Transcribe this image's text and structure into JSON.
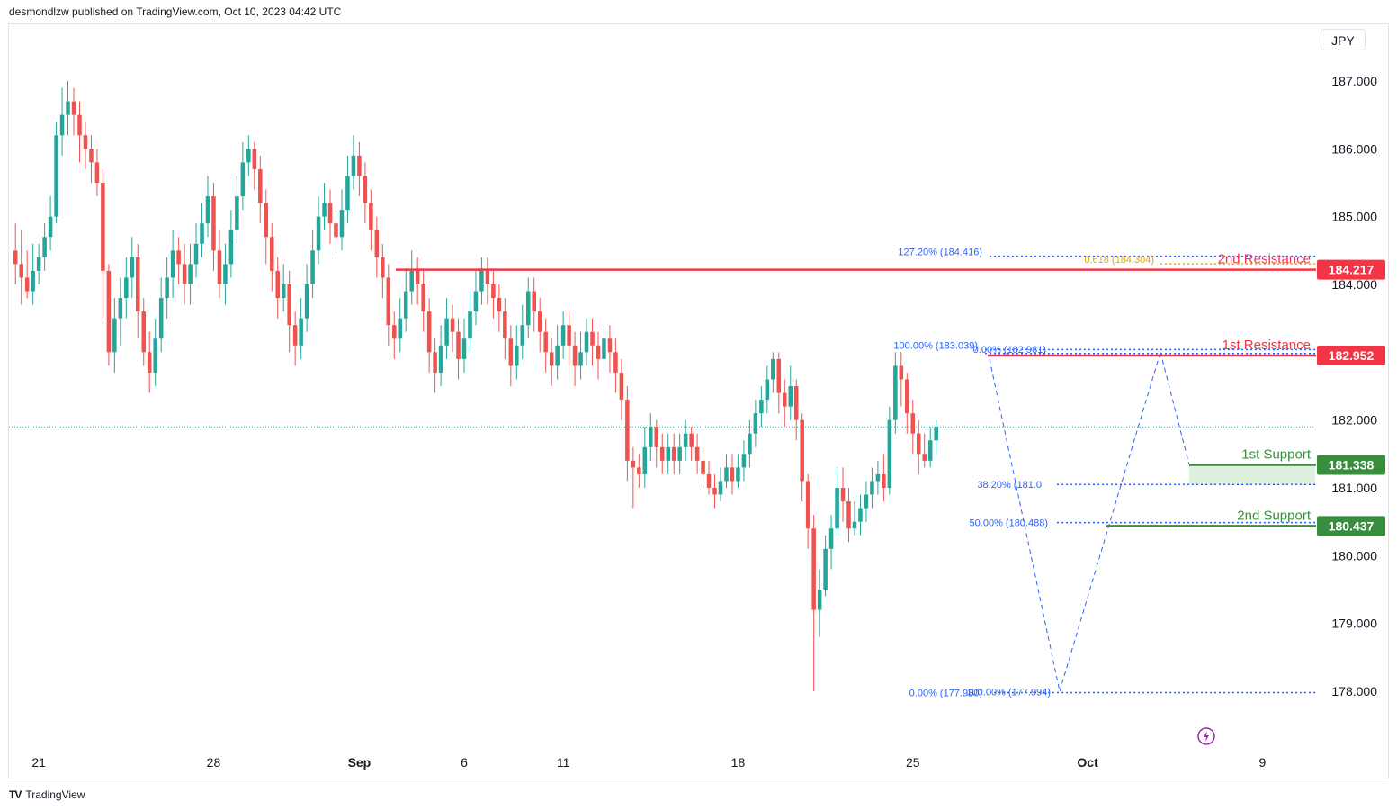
{
  "header": {
    "publisher": "desmondlzw published on TradingView.com, Oct 10, 2023 04:42 UTC"
  },
  "currency_label": "JPY",
  "footer": {
    "brand": "TradingView",
    "logo_icon": "tradingview-logo-icon"
  },
  "colors": {
    "up": "#26a69a",
    "down": "#ef5350",
    "resistance": "#f23645",
    "support": "#388e3c",
    "fib": "#2962ff",
    "fib_gold": "#f0a500",
    "support_zone": "#c8e6c9",
    "grid": "#f0f3fa",
    "last_price_line": "#26a69a"
  },
  "chart_data": {
    "type": "candlestick",
    "y_ticks": [
      "187.000",
      "186.000",
      "185.000",
      "184.000",
      "182.000",
      "181.000",
      "180.000",
      "179.000",
      "178.000"
    ],
    "y_tick_values": [
      187,
      186,
      185,
      184,
      182,
      181,
      180,
      179,
      178
    ],
    "ylim": [
      177.5,
      187.5
    ],
    "x_tick_labels": [
      {
        "label": "21",
        "bar": 4
      },
      {
        "label": "28",
        "bar": 34
      },
      {
        "label": "Sep",
        "bar": 59,
        "bold": true
      },
      {
        "label": "6",
        "bar": 77
      },
      {
        "label": "11",
        "bar": 94
      },
      {
        "label": "18",
        "bar": 124
      },
      {
        "label": "25",
        "bar": 154
      },
      {
        "label": "Oct",
        "bar": 184,
        "bold": true
      },
      {
        "label": "9",
        "bar": 214
      }
    ],
    "bars": [
      [
        184.5,
        184.3,
        184.9,
        184.0
      ],
      [
        184.3,
        184.1,
        184.8,
        183.7
      ],
      [
        184.1,
        183.9,
        184.5,
        183.8
      ],
      [
        183.9,
        184.2,
        184.6,
        183.7
      ],
      [
        184.2,
        184.4,
        184.6,
        184.0
      ],
      [
        184.4,
        184.7,
        184.9,
        184.2
      ],
      [
        184.7,
        185.0,
        185.3,
        184.5
      ],
      [
        185.0,
        186.2,
        186.4,
        184.9
      ],
      [
        186.2,
        186.5,
        186.9,
        185.9
      ],
      [
        186.5,
        186.7,
        187.0,
        186.2
      ],
      [
        186.7,
        186.5,
        186.9,
        186.2
      ],
      [
        186.5,
        186.2,
        186.7,
        185.8
      ],
      [
        186.2,
        186.0,
        186.4,
        185.7
      ],
      [
        186.0,
        185.8,
        186.2,
        185.5
      ],
      [
        185.8,
        185.5,
        186.0,
        185.3
      ],
      [
        185.5,
        184.2,
        185.7,
        183.5
      ],
      [
        184.2,
        183.0,
        184.3,
        182.8
      ],
      [
        183.0,
        183.5,
        183.8,
        182.7
      ],
      [
        183.5,
        183.8,
        184.1,
        183.1
      ],
      [
        183.8,
        184.1,
        184.4,
        183.5
      ],
      [
        184.1,
        184.4,
        184.7,
        183.8
      ],
      [
        184.4,
        183.6,
        184.6,
        183.2
      ],
      [
        183.6,
        183.0,
        183.8,
        182.8
      ],
      [
        183.0,
        182.7,
        183.3,
        182.4
      ],
      [
        182.7,
        183.2,
        183.5,
        182.5
      ],
      [
        183.2,
        183.8,
        184.1,
        183.0
      ],
      [
        183.8,
        184.1,
        184.4,
        183.5
      ],
      [
        184.1,
        184.5,
        184.8,
        183.8
      ],
      [
        184.5,
        184.3,
        184.7,
        184.0
      ],
      [
        184.3,
        184.0,
        184.6,
        183.7
      ],
      [
        184.0,
        184.3,
        184.6,
        183.7
      ],
      [
        184.3,
        184.6,
        184.9,
        184.1
      ],
      [
        184.6,
        184.9,
        185.2,
        184.4
      ],
      [
        184.9,
        185.3,
        185.6,
        184.7
      ],
      [
        185.3,
        184.5,
        185.5,
        184.2
      ],
      [
        184.5,
        184.0,
        184.8,
        183.8
      ],
      [
        184.0,
        184.3,
        184.6,
        183.7
      ],
      [
        184.3,
        184.8,
        185.1,
        184.1
      ],
      [
        184.8,
        185.3,
        185.6,
        184.6
      ],
      [
        185.3,
        185.8,
        186.1,
        185.1
      ],
      [
        185.8,
        186.0,
        186.2,
        185.6
      ],
      [
        186.0,
        185.7,
        186.1,
        185.4
      ],
      [
        185.7,
        185.2,
        185.9,
        184.9
      ],
      [
        185.2,
        184.7,
        185.4,
        184.3
      ],
      [
        184.7,
        184.2,
        184.9,
        183.9
      ],
      [
        184.2,
        183.8,
        184.4,
        183.5
      ],
      [
        183.8,
        184.0,
        184.3,
        183.6
      ],
      [
        184.0,
        183.4,
        184.2,
        183.0
      ],
      [
        183.4,
        183.1,
        183.6,
        182.8
      ],
      [
        183.1,
        183.5,
        183.8,
        182.9
      ],
      [
        183.5,
        184.0,
        184.3,
        183.3
      ],
      [
        184.0,
        184.5,
        184.8,
        183.8
      ],
      [
        184.5,
        185.0,
        185.3,
        184.3
      ],
      [
        185.0,
        185.2,
        185.5,
        184.8
      ],
      [
        185.2,
        184.9,
        185.4,
        184.6
      ],
      [
        184.9,
        184.7,
        185.1,
        184.4
      ],
      [
        184.7,
        185.1,
        185.4,
        184.5
      ],
      [
        185.1,
        185.6,
        185.9,
        184.9
      ],
      [
        185.6,
        185.9,
        186.2,
        185.4
      ],
      [
        185.9,
        185.6,
        186.1,
        185.3
      ],
      [
        185.6,
        185.2,
        185.8,
        184.9
      ],
      [
        185.2,
        184.8,
        185.4,
        184.5
      ],
      [
        184.8,
        184.4,
        185.0,
        184.1
      ],
      [
        184.4,
        184.1,
        184.6,
        183.8
      ],
      [
        184.1,
        183.4,
        184.3,
        183.1
      ],
      [
        183.4,
        183.2,
        183.6,
        182.9
      ],
      [
        183.2,
        183.5,
        183.8,
        183.0
      ],
      [
        183.5,
        183.9,
        184.2,
        183.3
      ],
      [
        183.9,
        184.2,
        184.5,
        183.7
      ],
      [
        184.2,
        184.0,
        184.4,
        183.7
      ],
      [
        184.0,
        183.6,
        184.2,
        183.3
      ],
      [
        183.6,
        183.0,
        183.8,
        182.7
      ],
      [
        183.0,
        182.7,
        183.2,
        182.4
      ],
      [
        182.7,
        183.1,
        183.4,
        182.5
      ],
      [
        183.1,
        183.5,
        183.8,
        182.9
      ],
      [
        183.5,
        183.3,
        183.7,
        183.0
      ],
      [
        183.3,
        182.9,
        183.5,
        182.6
      ],
      [
        182.9,
        183.2,
        183.5,
        182.7
      ],
      [
        183.2,
        183.6,
        183.9,
        183.0
      ],
      [
        183.6,
        183.9,
        184.2,
        183.4
      ],
      [
        183.9,
        184.2,
        184.4,
        183.7
      ],
      [
        184.2,
        184.0,
        184.4,
        183.7
      ],
      [
        184.0,
        183.8,
        184.2,
        183.5
      ],
      [
        183.8,
        183.6,
        184.0,
        183.3
      ],
      [
        183.6,
        183.2,
        183.8,
        182.9
      ],
      [
        183.2,
        182.8,
        183.4,
        182.5
      ],
      [
        182.8,
        183.1,
        183.4,
        182.6
      ],
      [
        183.1,
        183.4,
        183.7,
        182.9
      ],
      [
        183.4,
        183.9,
        184.1,
        183.2
      ],
      [
        183.9,
        183.6,
        184.1,
        183.3
      ],
      [
        183.6,
        183.3,
        183.8,
        183.0
      ],
      [
        183.3,
        183.0,
        183.5,
        182.7
      ],
      [
        183.0,
        182.8,
        183.2,
        182.5
      ],
      [
        182.8,
        183.1,
        183.4,
        182.6
      ],
      [
        183.1,
        183.4,
        183.6,
        182.9
      ],
      [
        183.4,
        183.1,
        183.6,
        182.8
      ],
      [
        183.1,
        182.8,
        183.3,
        182.5
      ],
      [
        182.8,
        183.0,
        183.3,
        182.6
      ],
      [
        183.0,
        183.3,
        183.5,
        182.8
      ],
      [
        183.3,
        183.1,
        183.5,
        182.8
      ],
      [
        183.1,
        182.9,
        183.3,
        182.6
      ],
      [
        182.9,
        183.2,
        183.4,
        182.7
      ],
      [
        183.2,
        183.0,
        183.4,
        182.7
      ],
      [
        183.0,
        182.7,
        183.2,
        182.4
      ],
      [
        182.7,
        182.3,
        182.9,
        182.0
      ],
      [
        182.3,
        181.4,
        182.5,
        181.1
      ],
      [
        181.4,
        181.3,
        181.6,
        180.7
      ],
      [
        181.3,
        181.2,
        181.5,
        181.0
      ],
      [
        181.2,
        181.6,
        181.9,
        181.0
      ],
      [
        181.6,
        181.9,
        182.1,
        181.4
      ],
      [
        181.9,
        181.6,
        182.0,
        181.3
      ],
      [
        181.6,
        181.4,
        181.8,
        181.2
      ],
      [
        181.4,
        181.6,
        181.8,
        181.2
      ],
      [
        181.6,
        181.4,
        181.8,
        181.2
      ],
      [
        181.4,
        181.6,
        181.8,
        181.2
      ],
      [
        181.6,
        181.8,
        182.0,
        181.4
      ],
      [
        181.8,
        181.6,
        181.9,
        181.4
      ],
      [
        181.6,
        181.4,
        181.8,
        181.2
      ],
      [
        181.4,
        181.2,
        181.6,
        181.0
      ],
      [
        181.2,
        181.0,
        181.4,
        180.9
      ],
      [
        181.0,
        180.9,
        181.2,
        180.7
      ],
      [
        180.9,
        181.1,
        181.3,
        180.8
      ],
      [
        181.1,
        181.3,
        181.5,
        181.0
      ],
      [
        181.3,
        181.1,
        181.5,
        180.9
      ],
      [
        181.1,
        181.3,
        181.5,
        181.0
      ],
      [
        181.3,
        181.5,
        181.7,
        181.1
      ],
      [
        181.5,
        181.8,
        182.0,
        181.3
      ],
      [
        181.8,
        182.1,
        182.3,
        181.6
      ],
      [
        182.1,
        182.3,
        182.5,
        181.9
      ],
      [
        182.3,
        182.6,
        182.8,
        182.1
      ],
      [
        182.6,
        182.9,
        183.0,
        182.4
      ],
      [
        182.9,
        182.4,
        183.0,
        182.1
      ],
      [
        182.4,
        182.2,
        182.6,
        181.9
      ],
      [
        182.2,
        182.5,
        182.8,
        182.0
      ],
      [
        182.5,
        182.0,
        182.6,
        181.7
      ],
      [
        182.0,
        181.1,
        182.1,
        180.8
      ],
      [
        181.1,
        180.4,
        181.2,
        180.1
      ],
      [
        180.4,
        179.2,
        180.6,
        178.0
      ],
      [
        179.2,
        179.5,
        179.8,
        178.8
      ],
      [
        179.5,
        180.1,
        180.3,
        179.4
      ],
      [
        180.1,
        180.4,
        180.6,
        179.8
      ],
      [
        180.4,
        181.0,
        181.3,
        180.3
      ],
      [
        181.0,
        180.8,
        181.3,
        180.5
      ],
      [
        180.8,
        180.4,
        181.0,
        180.2
      ],
      [
        180.4,
        180.5,
        180.8,
        180.3
      ],
      [
        180.5,
        180.7,
        180.9,
        180.3
      ],
      [
        180.7,
        180.9,
        181.1,
        180.5
      ],
      [
        180.9,
        181.1,
        181.3,
        180.7
      ],
      [
        181.1,
        181.2,
        181.4,
        180.9
      ],
      [
        181.2,
        181.0,
        181.5,
        180.8
      ],
      [
        181.0,
        182.0,
        182.2,
        180.9
      ],
      [
        182.0,
        182.8,
        183.0,
        181.8
      ],
      [
        182.8,
        182.6,
        183.0,
        182.2
      ],
      [
        182.6,
        182.1,
        182.7,
        181.8
      ],
      [
        182.1,
        181.8,
        182.3,
        181.5
      ],
      [
        181.8,
        181.5,
        182.0,
        181.2
      ],
      [
        181.5,
        181.4,
        181.8,
        181.3
      ],
      [
        181.4,
        181.7,
        181.9,
        181.3
      ],
      [
        181.7,
        181.9,
        182.0,
        181.5
      ]
    ],
    "bar_count_span": 222,
    "levels": {
      "resistance_2": {
        "label": "2nd Resistance",
        "value": 184.217,
        "badge": "184.217"
      },
      "resistance_1": {
        "label": "1st Resistance",
        "value": 182.952,
        "badge": "182.952"
      },
      "support_1": {
        "label": "1st Support",
        "value": 181.338,
        "badge": "181.338"
      },
      "support_2": {
        "label": "2nd Support",
        "value": 180.437,
        "badge": "180.437"
      }
    },
    "fib_labels": [
      {
        "text": "127.20% (184.416)",
        "value": 184.416
      },
      {
        "text": "0.618 (184.304)",
        "value": 184.304
      },
      {
        "text": "100.00% (183.039)",
        "value": 183.039
      },
      {
        "text": "0.00% (182.981)",
        "value": 182.981
      },
      {
        "text": "38.20% (181.0",
        "value": 181.05
      },
      {
        "text": "50.00% (180.488)",
        "value": 180.488
      },
      {
        "text": "0.00% (177.980)",
        "value": 177.98
      },
      {
        "text": "100.00% (177.994)",
        "value": 177.994
      }
    ],
    "last_price": 181.9
  }
}
